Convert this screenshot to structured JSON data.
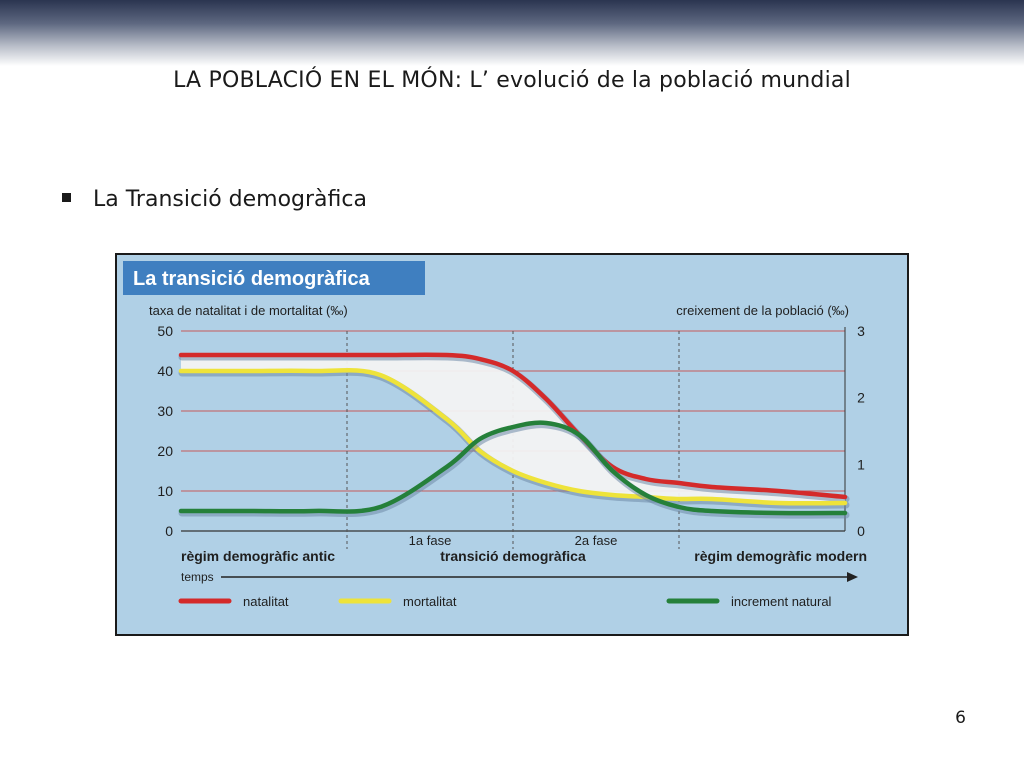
{
  "slide": {
    "title": "LA POBLACIÓ EN EL MÓN: L’ evolució de la població mundial",
    "bullet": "La Transició demogràfica",
    "page_number": "6"
  },
  "chart_data": {
    "type": "line",
    "title": "La transició demogràfica",
    "ylabel_left": "taxa de natalitat i de mortalitat (‰)",
    "ylabel_right": "creixement de la població (‰)",
    "xlabel": "temps",
    "ylim_left": [
      0,
      50
    ],
    "ylim_right": [
      0,
      3
    ],
    "yticks_left": [
      0,
      10,
      20,
      30,
      40,
      50
    ],
    "yticks_right": [
      0,
      1,
      2,
      3
    ],
    "grid": true,
    "x": [
      0,
      10,
      20,
      30,
      40,
      45,
      50,
      55,
      60,
      65,
      70,
      75,
      80,
      90,
      100
    ],
    "series": [
      {
        "name": "natalitat",
        "axis": "left",
        "color": "#d42a2a",
        "values": [
          44,
          44,
          44,
          44,
          44,
          43,
          40,
          33,
          24,
          16,
          13,
          12,
          11,
          10,
          8.5
        ]
      },
      {
        "name": "mortalitat",
        "axis": "left",
        "color": "#eee33a",
        "values": [
          40,
          40,
          40,
          39,
          28,
          20,
          15,
          12,
          10,
          9,
          8.5,
          8,
          8,
          7,
          7
        ]
      },
      {
        "name": "increment natural",
        "axis": "left",
        "color": "#25803a",
        "values": [
          5,
          5,
          5,
          6,
          16,
          23,
          26,
          27,
          24,
          15,
          9,
          6,
          5,
          4.5,
          4.5
        ]
      }
    ],
    "phase_boundaries": [
      25,
      50,
      75
    ],
    "phase_labels": [
      {
        "text": "1a fase",
        "x": 37.5
      },
      {
        "text": "2a fase",
        "x": 62.5
      }
    ],
    "stage_labels": [
      {
        "text": "règim demogràfic antic",
        "x": 12.5
      },
      {
        "text": "transició demogràfica",
        "x": 50
      },
      {
        "text": "règim demogràfic modern",
        "x": 87.5
      }
    ],
    "legend_placement": "bottom",
    "colors": {
      "fill": "#f3f3f3",
      "plot_bg": "#b0d0e6",
      "title_bg": "#3f7fc0"
    }
  }
}
